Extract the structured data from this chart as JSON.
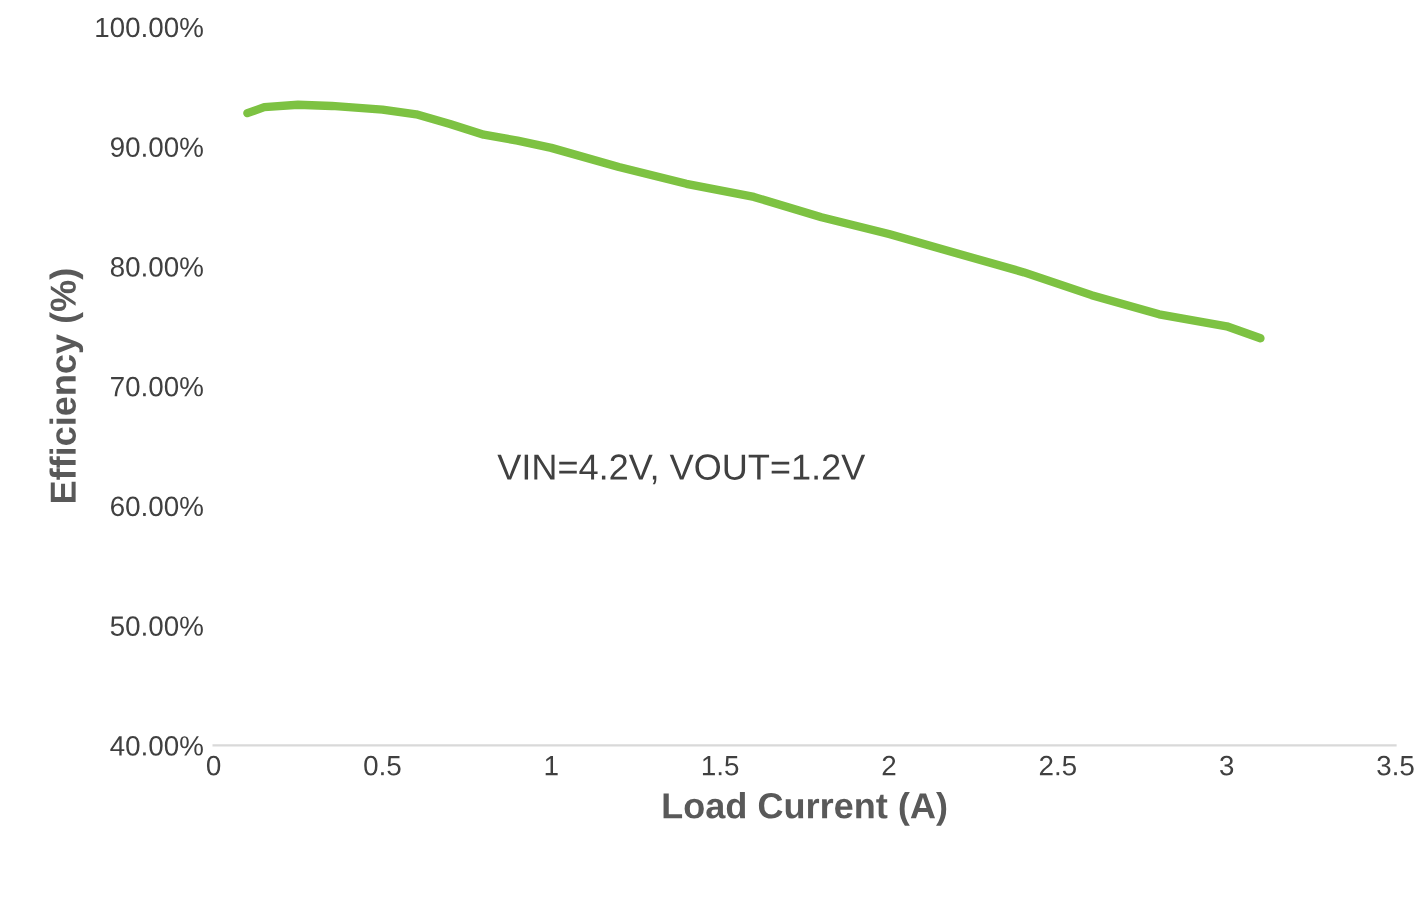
{
  "chart_data": {
    "type": "line",
    "xlabel": "Load Current (A)",
    "ylabel": "Efficiency (%)",
    "annotations": [
      "VIN=4.2V, VOUT=1.2V"
    ],
    "series": [
      {
        "color": "#7dc242",
        "x": [
          0.1,
          0.15,
          0.25,
          0.35,
          0.5,
          0.6,
          0.7,
          0.8,
          0.9,
          1.0,
          1.2,
          1.4,
          1.6,
          1.8,
          2.0,
          2.2,
          2.4,
          2.6,
          2.8,
          3.0,
          3.1
        ],
        "values": [
          92.8,
          93.3,
          93.5,
          93.4,
          93.1,
          92.7,
          91.9,
          91.0,
          90.5,
          89.9,
          88.3,
          86.9,
          85.8,
          84.1,
          82.7,
          81.1,
          79.5,
          77.6,
          76.0,
          75.0,
          74.0
        ]
      }
    ],
    "xlim": [
      0,
      3.5
    ],
    "xticks": [
      0,
      0.5,
      1,
      1.5,
      2,
      2.5,
      3,
      3.5
    ],
    "ylim": [
      40,
      100
    ],
    "yticks": [
      {
        "value": 40,
        "label": "40.00%"
      },
      {
        "value": 50,
        "label": "50.00%"
      },
      {
        "value": 60,
        "label": "60.00%"
      },
      {
        "value": 70,
        "label": "70.00%"
      },
      {
        "value": 80,
        "label": "80.00%"
      },
      {
        "value": 90,
        "label": "90.00%"
      },
      {
        "value": 100,
        "label": "100.00%"
      }
    ],
    "grid": false,
    "legend": false,
    "marker": "none",
    "line_style": "solid"
  }
}
